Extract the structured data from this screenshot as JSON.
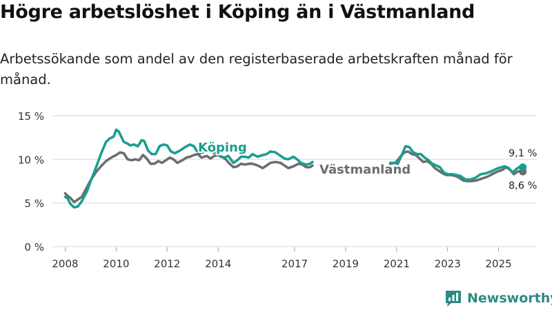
{
  "title": "Högre arbetslöshet i Köping än i Västmanland",
  "subtitle": "Arbetssökande som andel av den registerbaserade arbetskraften månad för månad.",
  "brand": {
    "name": "Newsworthy",
    "logo_icon": "bar-chart-logo-icon"
  },
  "colors": {
    "koping": "#1a9e91",
    "vastmanland": "#6d6d6d",
    "grid": "#dddddd",
    "brand": "#2a8a85"
  },
  "chart_data": {
    "type": "line",
    "title": "Högre arbetslöshet i Köping än i Västmanland",
    "xlabel": "",
    "ylabel": "",
    "ylim": [
      0,
      15
    ],
    "y_ticks": [
      0,
      5,
      10,
      15
    ],
    "y_tick_labels": [
      "0 %",
      "5 %",
      "10 %",
      "15 %"
    ],
    "x_range": [
      2007.5,
      2026.5
    ],
    "x_ticks": [
      2008,
      2010,
      2012,
      2014,
      2017,
      2019,
      2021,
      2023,
      2025
    ],
    "x_tick_labels": [
      "2008",
      "2010",
      "2012",
      "2014",
      "2017",
      "2019",
      "2021",
      "2023",
      "2025"
    ],
    "legend": "inline labels",
    "series": [
      {
        "name": "Köping",
        "label_text": "Köping",
        "color": "#1a9e91",
        "end_label": "9,1 %",
        "end_value": 9.1,
        "points": [
          [
            2008.0,
            5.7
          ],
          [
            2008.1,
            5.5
          ],
          [
            2008.2,
            4.9
          ],
          [
            2008.35,
            4.5
          ],
          [
            2008.5,
            4.6
          ],
          [
            2008.65,
            5.2
          ],
          [
            2008.85,
            6.3
          ],
          [
            2009.0,
            7.5
          ],
          [
            2009.2,
            9.0
          ],
          [
            2009.4,
            10.6
          ],
          [
            2009.6,
            12.0
          ],
          [
            2009.75,
            12.4
          ],
          [
            2009.9,
            12.6
          ],
          [
            2010.0,
            13.4
          ],
          [
            2010.1,
            13.2
          ],
          [
            2010.2,
            12.6
          ],
          [
            2010.3,
            12.0
          ],
          [
            2010.45,
            11.8
          ],
          [
            2010.55,
            11.6
          ],
          [
            2010.7,
            11.7
          ],
          [
            2010.85,
            11.5
          ],
          [
            2011.0,
            12.2
          ],
          [
            2011.1,
            12.1
          ],
          [
            2011.25,
            11.0
          ],
          [
            2011.4,
            10.6
          ],
          [
            2011.55,
            10.6
          ],
          [
            2011.7,
            11.5
          ],
          [
            2011.85,
            11.7
          ],
          [
            2012.0,
            11.6
          ],
          [
            2012.15,
            10.9
          ],
          [
            2012.3,
            10.7
          ],
          [
            2012.5,
            11.0
          ],
          [
            2012.7,
            11.4
          ],
          [
            2012.9,
            11.7
          ],
          [
            2013.05,
            11.5
          ],
          [
            2013.15,
            11.0
          ],
          [
            2013.3,
            10.7
          ],
          [
            2013.5,
            11.0
          ],
          [
            2013.7,
            10.9
          ],
          [
            2013.9,
            10.7
          ],
          [
            2014.1,
            10.3
          ],
          [
            2014.25,
            10.2
          ],
          [
            2014.4,
            10.4
          ],
          [
            2014.6,
            9.6
          ],
          [
            2014.75,
            9.9
          ],
          [
            2014.9,
            10.3
          ],
          [
            2015.05,
            10.3
          ],
          [
            2015.2,
            10.2
          ],
          [
            2015.35,
            10.6
          ],
          [
            2015.55,
            10.3
          ],
          [
            2015.75,
            10.5
          ],
          [
            2015.9,
            10.6
          ],
          [
            2016.05,
            10.9
          ],
          [
            2016.25,
            10.8
          ],
          [
            2016.45,
            10.4
          ],
          [
            2016.6,
            10.1
          ],
          [
            2016.75,
            10.0
          ],
          [
            2016.95,
            10.3
          ],
          [
            2017.1,
            10.0
          ],
          [
            2017.25,
            9.6
          ],
          [
            2017.45,
            9.4
          ],
          [
            2017.6,
            9.5
          ],
          [
            2017.7,
            9.7
          ],
          [
            2020.75,
            9.6
          ],
          [
            2020.9,
            9.6
          ],
          [
            2021.05,
            9.5
          ],
          [
            2021.2,
            10.5
          ],
          [
            2021.35,
            11.5
          ],
          [
            2021.5,
            11.4
          ],
          [
            2021.65,
            10.8
          ],
          [
            2021.8,
            10.6
          ],
          [
            2021.95,
            10.6
          ],
          [
            2022.1,
            10.2
          ],
          [
            2022.25,
            9.9
          ],
          [
            2022.4,
            9.5
          ],
          [
            2022.55,
            9.3
          ],
          [
            2022.7,
            9.1
          ],
          [
            2022.85,
            8.5
          ],
          [
            2023.0,
            8.3
          ],
          [
            2023.2,
            8.3
          ],
          [
            2023.35,
            8.2
          ],
          [
            2023.5,
            8.1
          ],
          [
            2023.7,
            7.7
          ],
          [
            2023.9,
            7.7
          ],
          [
            2024.1,
            7.9
          ],
          [
            2024.3,
            8.3
          ],
          [
            2024.5,
            8.4
          ],
          [
            2024.7,
            8.6
          ],
          [
            2024.9,
            8.9
          ],
          [
            2025.1,
            9.1
          ],
          [
            2025.25,
            9.2
          ],
          [
            2025.4,
            9.0
          ],
          [
            2025.55,
            8.5
          ],
          [
            2025.7,
            8.9
          ],
          [
            2025.85,
            9.2
          ],
          [
            2025.95,
            9.1
          ]
        ]
      },
      {
        "name": "Västmanland",
        "label_text": "Västmanland",
        "color": "#6d6d6d",
        "end_label": "8,6 %",
        "end_value": 8.6,
        "points": [
          [
            2008.0,
            6.1
          ],
          [
            2008.1,
            5.8
          ],
          [
            2008.2,
            5.6
          ],
          [
            2008.35,
            5.1
          ],
          [
            2008.5,
            5.4
          ],
          [
            2008.65,
            5.7
          ],
          [
            2008.85,
            6.8
          ],
          [
            2009.0,
            7.6
          ],
          [
            2009.2,
            8.5
          ],
          [
            2009.4,
            9.2
          ],
          [
            2009.6,
            9.8
          ],
          [
            2009.8,
            10.2
          ],
          [
            2010.0,
            10.5
          ],
          [
            2010.15,
            10.8
          ],
          [
            2010.3,
            10.7
          ],
          [
            2010.45,
            10.0
          ],
          [
            2010.6,
            9.9
          ],
          [
            2010.75,
            10.0
          ],
          [
            2010.9,
            9.9
          ],
          [
            2011.05,
            10.5
          ],
          [
            2011.2,
            10.1
          ],
          [
            2011.35,
            9.5
          ],
          [
            2011.5,
            9.5
          ],
          [
            2011.65,
            9.8
          ],
          [
            2011.8,
            9.6
          ],
          [
            2011.95,
            9.9
          ],
          [
            2012.1,
            10.2
          ],
          [
            2012.25,
            10.0
          ],
          [
            2012.4,
            9.6
          ],
          [
            2012.6,
            9.9
          ],
          [
            2012.75,
            10.2
          ],
          [
            2012.9,
            10.3
          ],
          [
            2013.05,
            10.5
          ],
          [
            2013.2,
            10.6
          ],
          [
            2013.35,
            10.2
          ],
          [
            2013.55,
            10.4
          ],
          [
            2013.7,
            10.1
          ],
          [
            2013.85,
            10.4
          ],
          [
            2014.0,
            10.5
          ],
          [
            2014.15,
            10.3
          ],
          [
            2014.3,
            10.0
          ],
          [
            2014.45,
            9.5
          ],
          [
            2014.6,
            9.1
          ],
          [
            2014.75,
            9.2
          ],
          [
            2014.9,
            9.5
          ],
          [
            2015.05,
            9.4
          ],
          [
            2015.2,
            9.5
          ],
          [
            2015.35,
            9.5
          ],
          [
            2015.55,
            9.3
          ],
          [
            2015.75,
            9.0
          ],
          [
            2015.9,
            9.3
          ],
          [
            2016.05,
            9.6
          ],
          [
            2016.25,
            9.7
          ],
          [
            2016.45,
            9.6
          ],
          [
            2016.6,
            9.3
          ],
          [
            2016.75,
            9.0
          ],
          [
            2016.95,
            9.2
          ],
          [
            2017.15,
            9.5
          ],
          [
            2017.3,
            9.4
          ],
          [
            2017.45,
            9.1
          ],
          [
            2017.6,
            9.1
          ],
          [
            2017.7,
            9.3
          ],
          [
            2020.75,
            9.5
          ],
          [
            2020.95,
            9.6
          ],
          [
            2021.15,
            10.3
          ],
          [
            2021.3,
            10.8
          ],
          [
            2021.45,
            10.9
          ],
          [
            2021.6,
            10.6
          ],
          [
            2021.75,
            10.5
          ],
          [
            2021.9,
            10.1
          ],
          [
            2022.05,
            9.7
          ],
          [
            2022.2,
            9.8
          ],
          [
            2022.35,
            9.5
          ],
          [
            2022.5,
            9.0
          ],
          [
            2022.65,
            8.7
          ],
          [
            2022.8,
            8.4
          ],
          [
            2022.95,
            8.2
          ],
          [
            2023.15,
            8.2
          ],
          [
            2023.3,
            8.1
          ],
          [
            2023.45,
            7.9
          ],
          [
            2023.6,
            7.6
          ],
          [
            2023.75,
            7.5
          ],
          [
            2023.95,
            7.5
          ],
          [
            2024.15,
            7.6
          ],
          [
            2024.35,
            7.8
          ],
          [
            2024.55,
            8.0
          ],
          [
            2024.75,
            8.3
          ],
          [
            2024.95,
            8.6
          ],
          [
            2025.15,
            8.8
          ],
          [
            2025.3,
            9.1
          ],
          [
            2025.45,
            8.8
          ],
          [
            2025.6,
            8.3
          ],
          [
            2025.75,
            8.6
          ],
          [
            2025.9,
            8.7
          ],
          [
            2025.95,
            8.6
          ]
        ]
      }
    ]
  }
}
